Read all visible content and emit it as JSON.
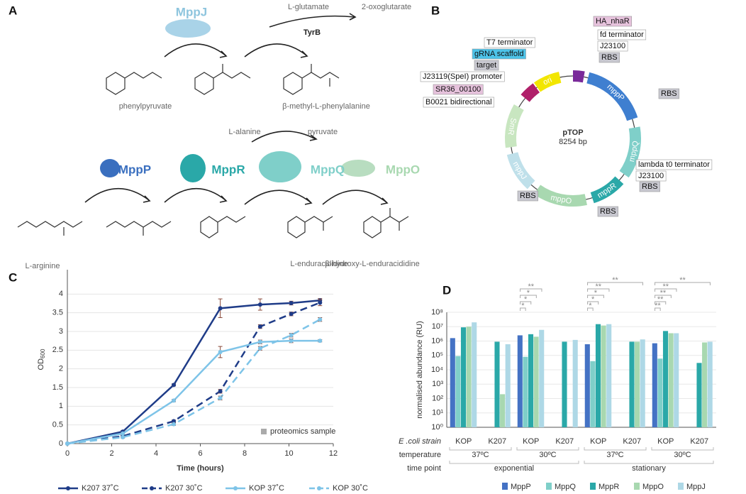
{
  "panel_a": {
    "label": "A",
    "enzymes": [
      "MppJ",
      "TyrB",
      "MppP",
      "MppR",
      "MppQ",
      "MppO"
    ],
    "cosubstrates": [
      "L-glutamate",
      "2-oxoglutarate",
      "L-alanine",
      "pyruvate"
    ],
    "compounds": [
      "phenylpyruvate",
      "β-methyl-L-phenylalanine",
      "L-arginine",
      "L-enduracididine",
      "β-hydroxy-L-enduracididine"
    ]
  },
  "panel_b": {
    "label": "B",
    "name": "pTOP",
    "size": "8254 bp",
    "features": [
      "HA_nhaR",
      "fd terminator",
      "J23100",
      "RBS",
      "RBS",
      "lambda t0 terminator",
      "J23100",
      "RBS",
      "RBS",
      "RBS",
      "T7 terminator",
      "gRNA scaffold",
      "target",
      "J23119(SpeI) promoter",
      "SR36_00100",
      "B0021 bidirectional"
    ],
    "genes": [
      "ori",
      "mppP",
      "mppQ",
      "mppR",
      "mppO",
      "mppJ",
      "SmR"
    ]
  },
  "chart_data": [
    {
      "type": "line",
      "label": "C",
      "xlabel": "Time (hours)",
      "ylabel": "OD",
      "ylabel_sub": "600",
      "annotation": "proteomics sample",
      "x": [
        0,
        2.5,
        4.8,
        6.9,
        8.7,
        10.1,
        11.4
      ],
      "xlim": [
        0,
        12
      ],
      "xticks": [
        0,
        2,
        4,
        6,
        8,
        10,
        12
      ],
      "ylim": [
        0,
        4.5
      ],
      "yticks": [
        0,
        0.5,
        1,
        1.5,
        2,
        2.5,
        3,
        3.5,
        4
      ],
      "grid": true,
      "series": [
        {
          "name": "K207 37˚C",
          "color": "#1f3c88",
          "dashed": false,
          "values": [
            0,
            0.32,
            1.57,
            3.62,
            3.72,
            3.76,
            3.83
          ],
          "errors": [
            0,
            0.03,
            0.03,
            0.25,
            0.15,
            0.05,
            0.05
          ]
        },
        {
          "name": "K207 30˚C",
          "color": "#1f3c88",
          "dashed": true,
          "values": [
            0,
            0.2,
            0.6,
            1.4,
            3.13,
            3.47,
            3.77
          ],
          "errors": [
            0,
            0.02,
            0.03,
            0.05,
            0.05,
            0.05,
            0.08
          ]
        },
        {
          "name": "KOP 37˚C",
          "color": "#7ec4e8",
          "dashed": false,
          "values": [
            0,
            0.27,
            1.15,
            2.45,
            2.72,
            2.75,
            2.75
          ],
          "errors": [
            0,
            0.02,
            0.03,
            0.15,
            0.05,
            0.05,
            0.03
          ]
        },
        {
          "name": "KOP 30˚C",
          "color": "#7ec4e8",
          "dashed": true,
          "values": [
            0,
            0.17,
            0.52,
            1.22,
            2.55,
            2.9,
            3.32
          ],
          "errors": [
            0,
            0.02,
            0.03,
            0.05,
            0.05,
            0.05,
            0.05
          ]
        }
      ]
    },
    {
      "type": "bar",
      "label": "D",
      "ylabel": "normalised abundance (RU)",
      "log_scale": true,
      "grid": true,
      "row_labels": [
        "E .coli strain",
        "temperature",
        "time point"
      ],
      "categories": [
        "KOP",
        "K207",
        "KOP",
        "K207",
        "KOP",
        "K207",
        "KOP",
        "K207"
      ],
      "temperatures": [
        "37ºC",
        "30ºC",
        "37ºC",
        "30ºC"
      ],
      "time_points": [
        "exponential",
        "stationary"
      ],
      "ylim": [
        1,
        100000000
      ],
      "yticks": [
        {
          "value": 1,
          "label": "10⁰"
        },
        {
          "value": 10,
          "label": "10¹"
        },
        {
          "value": 100,
          "label": "10²"
        },
        {
          "value": 1000,
          "label": "10³"
        },
        {
          "value": 10000,
          "label": "10⁴"
        },
        {
          "value": 100000,
          "label": "10⁵"
        },
        {
          "value": 1000000,
          "label": "10⁶"
        },
        {
          "value": 10000000,
          "label": "10⁷"
        },
        {
          "value": 100000000,
          "label": "10⁸"
        }
      ],
      "series": [
        {
          "name": "MppP",
          "color": "#4472c4",
          "values": [
            1600000,
            null,
            2500000,
            null,
            600000,
            null,
            700000,
            null
          ]
        },
        {
          "name": "MppQ",
          "color": "#7fcfc9",
          "values": [
            90000,
            null,
            80000,
            null,
            40000,
            null,
            60000,
            null
          ]
        },
        {
          "name": "MppR",
          "color": "#2aa8a8",
          "values": [
            9000000,
            900000,
            3000000,
            900000,
            15000000,
            900000,
            5000000,
            30000
          ]
        },
        {
          "name": "MppO",
          "color": "#a8d8b0",
          "values": [
            10000000,
            200,
            2000000,
            null,
            12000000,
            900000,
            3500000,
            800000
          ]
        },
        {
          "name": "MppJ",
          "color": "#aed8e6",
          "values": [
            20000000,
            600000,
            6000000,
            1200000,
            15000000,
            1300000,
            3500000,
            900000
          ]
        }
      ],
      "significance": [
        null,
        null,
        [
          "*",
          "*",
          "*",
          "**"
        ],
        null,
        [
          "*",
          "*",
          "*",
          "**",
          "**"
        ],
        null,
        [
          "**",
          "**",
          "**",
          "**",
          "**"
        ],
        null
      ]
    }
  ]
}
